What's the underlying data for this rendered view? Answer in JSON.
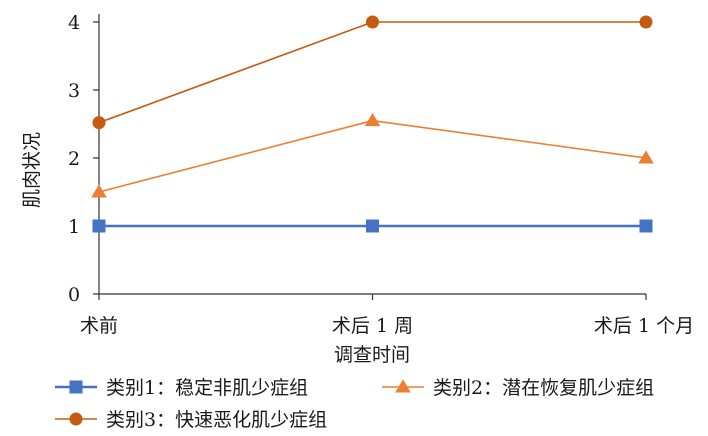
{
  "chart_data": {
    "type": "line",
    "categories": [
      "术前",
      "术后 1 周",
      "术后 1 个月"
    ],
    "xlabel": "调查时间",
    "ylabel": "肌肉状况",
    "ylim": [
      0,
      4
    ],
    "yticks": [
      "0",
      "1",
      "2",
      "3",
      "4"
    ],
    "grid": false,
    "legend_position": "bottom",
    "series": [
      {
        "name": "类别1：稳定非肌少症组",
        "values": [
          1,
          1,
          1
        ],
        "color": "#4472c4",
        "marker": "square"
      },
      {
        "name": "类别2：潜在恢复肌少症组",
        "values": [
          1.5,
          2.55,
          2.0
        ],
        "color": "#ed7d31",
        "marker": "triangle"
      },
      {
        "name": "类别3：快速恶化肌少症组",
        "values": [
          2.52,
          4.0,
          4.0
        ],
        "color": "#c55a11",
        "marker": "circle"
      }
    ]
  }
}
